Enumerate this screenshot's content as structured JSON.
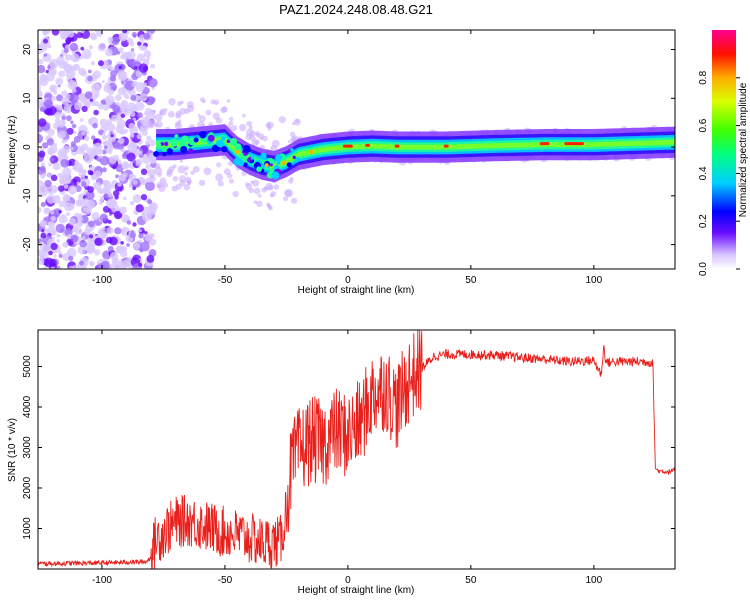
{
  "figure_title": "PAZ1.2024.248.08.48.G21",
  "chart_data": [
    {
      "type": "heatmap",
      "title": "PAZ1.2024.248.08.48.G21",
      "xlabel": "Height of straight line (km)",
      "ylabel": "Frequency (Hz)",
      "xlim": [
        -126,
        133
      ],
      "ylim": [
        -25,
        24
      ],
      "xticks": [
        -100,
        -50,
        0,
        50,
        100
      ],
      "yticks": [
        -20,
        -10,
        0,
        10,
        20
      ],
      "ridge_x": [
        -78,
        -70,
        -60,
        -50,
        -45,
        -40,
        -35,
        -30,
        -25,
        -20,
        -10,
        0,
        10,
        20,
        40,
        60,
        80,
        100,
        120,
        133
      ],
      "ridge_freq": [
        0.5,
        0.5,
        1.0,
        1.5,
        -1.0,
        -2.5,
        -3.5,
        -4.0,
        -3.0,
        -1.5,
        -0.5,
        0.0,
        0.2,
        0.0,
        0.0,
        0.3,
        0.5,
        0.5,
        0.8,
        1.0
      ],
      "colorbar": {
        "label": "Normalized spectral amplitude",
        "ticks": [
          0.0,
          0.2,
          0.4,
          0.6,
          0.8
        ],
        "range": [
          0,
          1
        ]
      }
    },
    {
      "type": "line",
      "xlabel": "Height of straight line (km)",
      "ylabel": "SNR (10 * v/v)",
      "xlim": [
        -126,
        133
      ],
      "ylim": [
        0,
        5900
      ],
      "xticks": [
        -100,
        -50,
        0,
        50,
        100
      ],
      "yticks": [
        1000,
        2000,
        3000,
        4000,
        5000
      ],
      "color": "#e8201c",
      "x": [
        -126,
        -100,
        -82,
        -80,
        -78,
        -75,
        -70,
        -65,
        -60,
        -55,
        -50,
        -45,
        -40,
        -35,
        -30,
        -27,
        -25,
        -23,
        -20,
        -15,
        -10,
        -5,
        0,
        5,
        10,
        15,
        20,
        25,
        30,
        35,
        40,
        50,
        60,
        70,
        80,
        90,
        100,
        103,
        104,
        105,
        110,
        120,
        124,
        125,
        126,
        130,
        133
      ],
      "y": [
        130,
        150,
        180,
        300,
        750,
        900,
        1150,
        1200,
        1100,
        1000,
        900,
        850,
        750,
        650,
        650,
        700,
        1600,
        2500,
        2900,
        3200,
        3100,
        3400,
        3300,
        3600,
        4300,
        4500,
        4000,
        4700,
        4950,
        5250,
        5300,
        5300,
        5280,
        5220,
        5180,
        5120,
        5150,
        4800,
        5500,
        5100,
        5120,
        5120,
        5100,
        2500,
        2420,
        2400,
        2430
      ]
    }
  ]
}
